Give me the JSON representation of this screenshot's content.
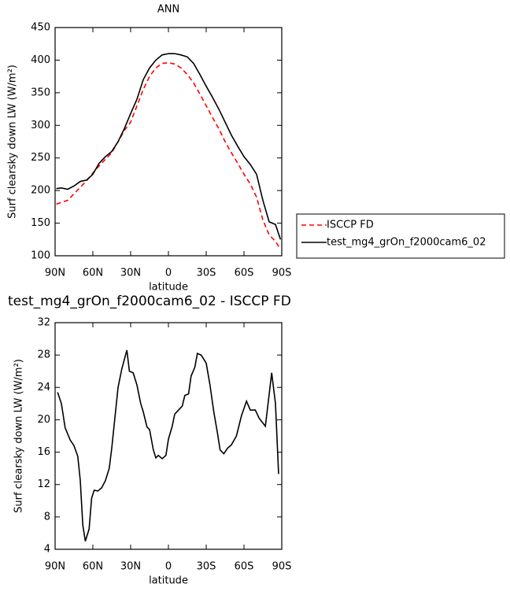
{
  "chart_data": [
    {
      "type": "line",
      "title": "ANN",
      "x_label": "latitude",
      "y_label": "Surf clearsky down LW (W/m²)",
      "x": [
        89,
        85,
        80,
        75,
        70,
        65,
        60,
        55,
        50,
        45,
        40,
        35,
        30,
        25,
        20,
        15,
        10,
        5,
        0,
        -5,
        -10,
        -15,
        -20,
        -25,
        -30,
        -35,
        -40,
        -45,
        -50,
        -55,
        -60,
        -65,
        -70,
        -75,
        -80,
        -85,
        -89
      ],
      "series": [
        {
          "name": "ISCCP FD",
          "color": "#ff0000",
          "line_style": "dashed",
          "values": [
            179,
            182,
            185,
            195,
            205,
            215,
            227,
            238,
            248,
            258,
            275,
            292,
            305,
            330,
            355,
            375,
            388,
            395,
            396,
            394,
            388,
            378,
            365,
            348,
            330,
            312,
            295,
            275,
            258,
            242,
            225,
            210,
            190,
            155,
            132,
            122,
            110
          ]
        },
        {
          "name": "test_mg4_grOn_f2000cam6_02",
          "color": "#000000",
          "line_style": "solid",
          "values": [
            203,
            204,
            202,
            207,
            214,
            216,
            225,
            242,
            252,
            260,
            275,
            295,
            318,
            340,
            370,
            388,
            400,
            408,
            410,
            410,
            408,
            405,
            395,
            378,
            360,
            343,
            325,
            305,
            285,
            268,
            252,
            240,
            225,
            185,
            152,
            148,
            125
          ]
        }
      ],
      "xlim": [
        90,
        -90
      ],
      "xticks": [
        {
          "value": 90,
          "label": "90N"
        },
        {
          "value": 60,
          "label": "60N"
        },
        {
          "value": 30,
          "label": "30N"
        },
        0,
        {
          "value": -30,
          "label": "30S"
        },
        {
          "value": -60,
          "label": "60S"
        },
        {
          "value": -90,
          "label": "90S"
        }
      ],
      "ylim": [
        100,
        450
      ],
      "yticks": [
        100,
        150,
        200,
        250,
        300,
        350,
        400,
        450
      ],
      "legend": "outside-right"
    },
    {
      "type": "line",
      "title": "test_mg4_grOn_f2000cam6_02 - ISCCP FD",
      "x_label": "latitude",
      "y_label": "Surf clearsky down LW (W/m²)",
      "x": [
        88,
        85,
        82,
        78,
        75,
        72,
        70,
        68,
        66,
        63,
        61,
        59,
        56,
        53,
        50,
        47,
        45,
        42,
        40,
        37,
        33,
        31,
        28,
        25,
        22,
        20,
        17,
        15,
        12,
        10,
        8,
        5,
        2,
        0,
        -3,
        -5,
        -8,
        -11,
        -13,
        -16,
        -18,
        -21,
        -23,
        -26,
        -30,
        -33,
        -36,
        -39,
        -41,
        -44,
        -47,
        -50,
        -54,
        -58,
        -62,
        -65,
        -69,
        -72,
        -77,
        -82,
        -85,
        -87.5
      ],
      "series": [
        {
          "name": "test_mg4_grOn_f2000cam6_02 - ISCCP FD",
          "color": "#000000",
          "line_style": "solid",
          "values": [
            23.4,
            22,
            19,
            17.5,
            16.8,
            15.5,
            12.5,
            7,
            5,
            6.5,
            10.3,
            11.3,
            11.2,
            11.6,
            12.5,
            14,
            16.5,
            21,
            24,
            26.3,
            28.6,
            26,
            25.8,
            24.3,
            22,
            21,
            19.1,
            18.8,
            16.3,
            15.3,
            15.6,
            15.2,
            15.6,
            17.6,
            19.2,
            20.7,
            21.2,
            21.7,
            23,
            23.2,
            25.4,
            26.5,
            28.2,
            28,
            27,
            24.3,
            21,
            18.3,
            16.3,
            15.8,
            16.5,
            16.9,
            18,
            20.5,
            22.3,
            21.2,
            21.2,
            20.2,
            19.2,
            25.8,
            22,
            13.3
          ]
        }
      ],
      "xlim": [
        90,
        -90
      ],
      "xticks": [
        {
          "value": 90,
          "label": "90N"
        },
        {
          "value": 60,
          "label": "60N"
        },
        {
          "value": 30,
          "label": "30N"
        },
        0,
        {
          "value": -30,
          "label": "30S"
        },
        {
          "value": -60,
          "label": "60S"
        },
        {
          "value": -90,
          "label": "90S"
        }
      ],
      "ylim": [
        4,
        32
      ],
      "yticks": [
        4,
        8,
        12,
        16,
        20,
        24,
        28,
        32
      ]
    }
  ]
}
